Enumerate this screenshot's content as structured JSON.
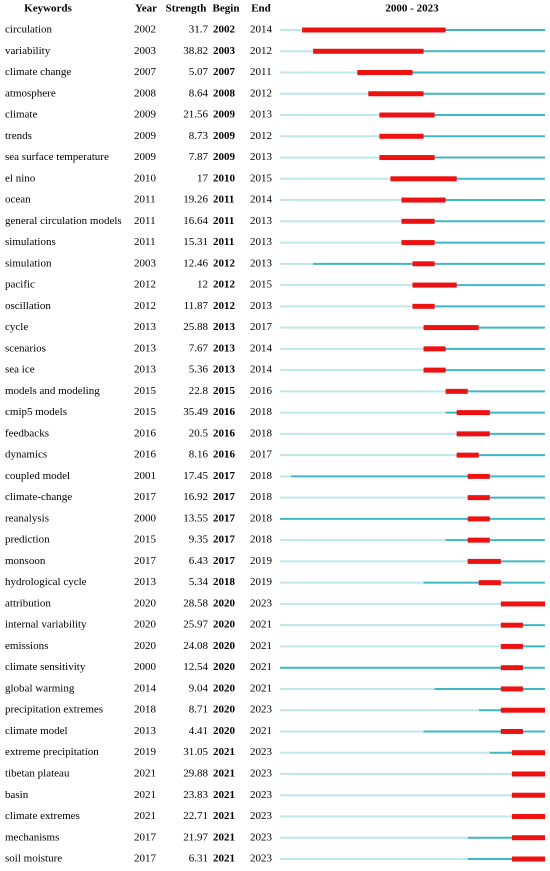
{
  "table": {
    "header": [
      "Keywords",
      "Year",
      "Strength",
      "Begin",
      "End",
      "2000 - 2023"
    ],
    "rows": [
      [
        "circulation",
        2002,
        31.7,
        2002,
        2014
      ],
      [
        "variability",
        2003,
        38.82,
        2003,
        2012
      ],
      [
        "climate change",
        2007,
        5.07,
        2007,
        2011
      ],
      [
        "atmosphere",
        2008,
        8.64,
        2008,
        2012
      ],
      [
        "climate",
        2009,
        21.56,
        2009,
        2013
      ],
      [
        "trends",
        2009,
        8.73,
        2009,
        2012
      ],
      [
        "sea surface temperature",
        2009,
        7.87,
        2009,
        2013
      ],
      [
        "el nino",
        2010,
        17,
        2010,
        2015
      ],
      [
        "ocean",
        2011,
        19.26,
        2011,
        2014
      ],
      [
        "general circulation models",
        2011,
        16.64,
        2011,
        2013
      ],
      [
        "simulations",
        2011,
        15.31,
        2011,
        2013
      ],
      [
        "simulation",
        2003,
        12.46,
        2012,
        2013
      ],
      [
        "pacific",
        2012,
        12,
        2012,
        2015
      ],
      [
        "oscillation",
        2012,
        11.87,
        2012,
        2013
      ],
      [
        "cycle",
        2013,
        25.88,
        2013,
        2017
      ],
      [
        "scenarios",
        2013,
        7.67,
        2013,
        2014
      ],
      [
        "sea ice",
        2013,
        5.36,
        2013,
        2014
      ],
      [
        "models and modeling",
        2015,
        22.8,
        2015,
        2016
      ],
      [
        "cmip5 models",
        2015,
        35.49,
        2016,
        2018
      ],
      [
        "feedbacks",
        2016,
        20.5,
        2016,
        2018
      ],
      [
        "dynamics",
        2016,
        8.16,
        2016,
        2017
      ],
      [
        "coupled model",
        2001,
        17.45,
        2017,
        2018
      ],
      [
        "climate-change",
        2017,
        16.92,
        2017,
        2018
      ],
      [
        "reanalysis",
        2000,
        13.55,
        2017,
        2018
      ],
      [
        "prediction",
        2015,
        9.35,
        2017,
        2018
      ],
      [
        "monsoon",
        2017,
        6.43,
        2017,
        2019
      ],
      [
        "hydrological cycle",
        2013,
        5.34,
        2018,
        2019
      ],
      [
        "attribution",
        2020,
        28.58,
        2020,
        2023
      ],
      [
        "internal variability",
        2020,
        25.97,
        2020,
        2021
      ],
      [
        "emissions",
        2020,
        24.08,
        2020,
        2021
      ],
      [
        "climate sensitivity",
        2000,
        12.54,
        2020,
        2021
      ],
      [
        "global warming",
        2014,
        9.04,
        2020,
        2021
      ],
      [
        "precipitation extremes",
        2018,
        8.71,
        2020,
        2023
      ],
      [
        "climate model",
        2013,
        4.41,
        2020,
        2021
      ],
      [
        "extreme precipitation",
        2019,
        31.05,
        2021,
        2023
      ],
      [
        "tibetan plateau",
        2021,
        29.88,
        2021,
        2023
      ],
      [
        "basin",
        2021,
        23.83,
        2021,
        2023
      ],
      [
        "climate extremes",
        2021,
        22.71,
        2021,
        2023
      ],
      [
        "mechanisms",
        2017,
        21.97,
        2021,
        2023
      ],
      [
        "soil moisture",
        2017,
        6.31,
        2021,
        2023
      ]
    ]
  }
}
